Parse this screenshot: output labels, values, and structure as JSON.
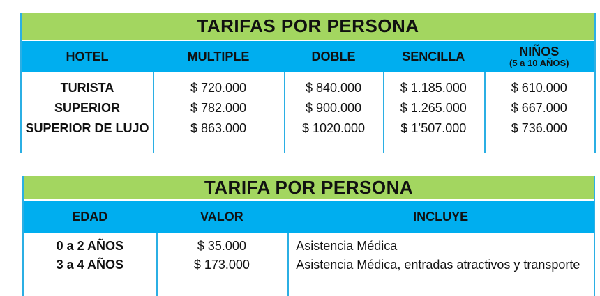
{
  "colors": {
    "green": "#A3D660",
    "blue": "#00AEEF",
    "line": "#2BAFE4",
    "text": "#111111"
  },
  "table1": {
    "title": "TARIFAS POR PERSONA",
    "columns": [
      "HOTEL",
      "MULTIPLE",
      "DOBLE",
      "SENCILLA",
      "NIÑOS"
    ],
    "ninos_subtitle": "(5 a 10 AÑOS)",
    "rows": [
      [
        "TURISTA",
        "$ 720.000",
        "$ 840.000",
        "$ 1.185.000",
        "$ 610.000"
      ],
      [
        "SUPERIOR",
        "$ 782.000",
        "$ 900.000",
        "$ 1.265.000",
        "$ 667.000"
      ],
      [
        "SUPERIOR DE LUJO",
        "$ 863.000",
        "$ 1020.000",
        "$ 1’507.000",
        "$ 736.000"
      ]
    ]
  },
  "table2": {
    "title": "TARIFA POR PERSONA",
    "columns": [
      "EDAD",
      "VALOR",
      "INCLUYE"
    ],
    "rows": [
      [
        "0 a 2 AÑOS",
        "$ 35.000",
        "Asistencia Médica"
      ],
      [
        "3 a 4 AÑOS",
        "$ 173.000",
        "Asistencia Médica, entradas atractivos y transporte"
      ]
    ]
  }
}
